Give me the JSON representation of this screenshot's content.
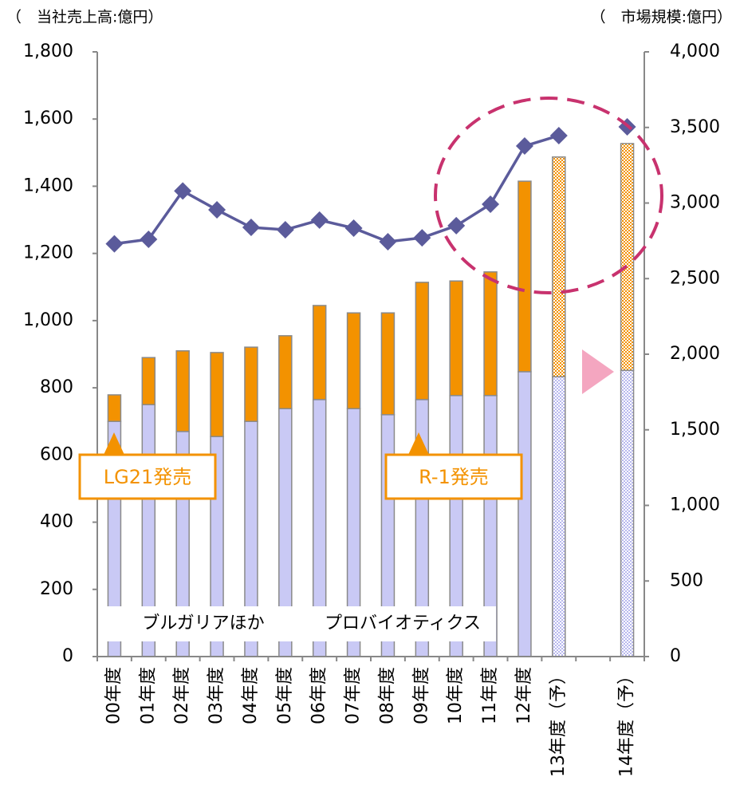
{
  "chart_data": {
    "type": "bar",
    "y_label": "（　当社売上高:億円）",
    "y2_label": "（　市場規模:億円）",
    "categories": [
      "00年度",
      "01年度",
      "02年度",
      "03年度",
      "04年度",
      "05年度",
      "06年度",
      "07年度",
      "08年度",
      "09年度",
      "10年度",
      "11年度",
      "12年度",
      "13年度（予）",
      null,
      "14年度（予）"
    ],
    "series": [
      {
        "name": "ブルガリアほか",
        "color": "#c9c9f5",
        "values": [
          700,
          750,
          670,
          655,
          700,
          738,
          765,
          738,
          720,
          765,
          777,
          777,
          848,
          833,
          null,
          852
        ]
      },
      {
        "name": "プロバイオティクス",
        "color": "#f39200",
        "values": [
          79,
          140,
          240,
          250,
          221,
          217,
          280,
          285,
          303,
          349,
          341,
          368,
          567,
          654,
          null,
          675
        ]
      },
      {
        "type": "line",
        "axis": "y2",
        "color": "#5b5b9b",
        "values": [
          2730,
          2760,
          3080,
          2955,
          2839,
          2823,
          2887,
          2834,
          2744,
          2770,
          2850,
          2992,
          3377,
          3446,
          null,
          3504
        ]
      }
    ],
    "ylim": [
      0,
      1800
    ],
    "yticks": [
      0,
      200,
      400,
      600,
      800,
      {
        "value": 1000,
        "label": "1,000"
      },
      {
        "value": 1200,
        "label": "1,200"
      },
      {
        "value": 1400,
        "label": "1,400"
      },
      {
        "value": 1600,
        "label": "1,600"
      },
      {
        "value": 1800,
        "label": "1,800"
      }
    ],
    "y2lim": [
      0,
      4000
    ],
    "y2ticks": [
      0,
      500,
      {
        "value": 1000,
        "label": "1,000"
      },
      {
        "value": 1500,
        "label": "1,500"
      },
      {
        "value": 2000,
        "label": "2,000"
      },
      {
        "value": 2500,
        "label": "2,500"
      },
      {
        "value": 3000,
        "label": "3,000"
      },
      {
        "value": 3500,
        "label": "3,500"
      },
      {
        "value": 4000,
        "label": "4,000"
      }
    ],
    "annotations": [
      "LG21発売",
      "R-1発売"
    ]
  }
}
